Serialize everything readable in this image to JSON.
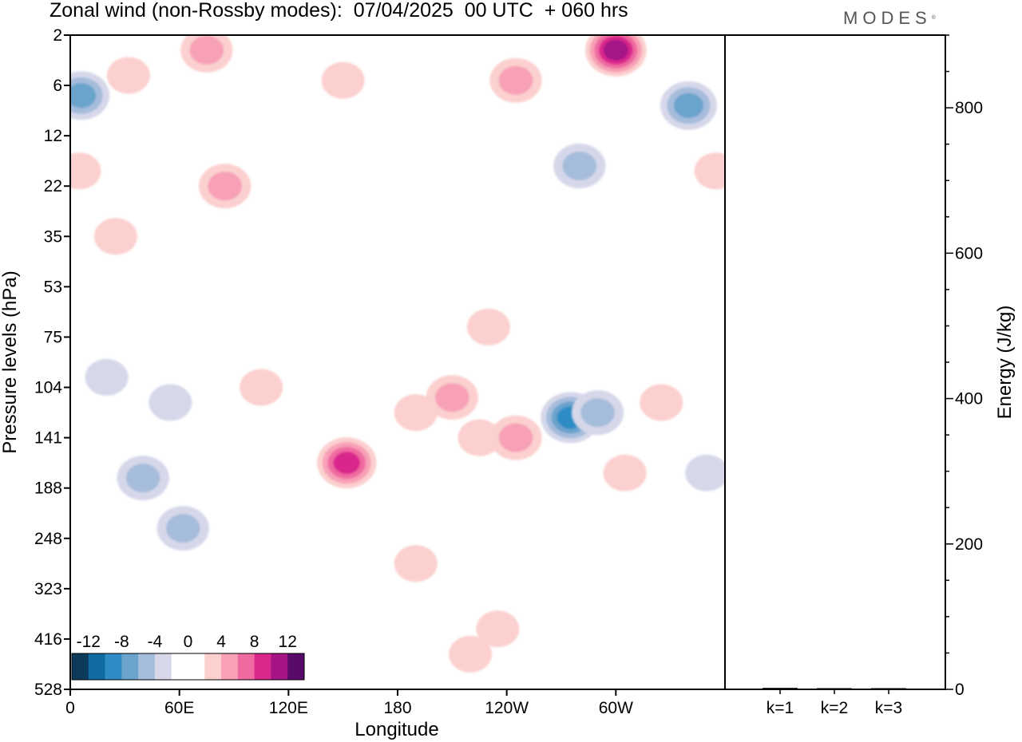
{
  "header": {
    "title": "Zonal wind (non-Rossby modes):  07/04/2025  00 UTC  + 060 hrs",
    "logo": "MODES",
    "logo_mark": "®"
  },
  "chart_data": [
    {
      "type": "heatmap",
      "title": "Zonal wind (non-Rossby modes):  07/04/2025  00 UTC  + 060 hrs",
      "xlabel": "Longitude",
      "ylabel": "Pressure levels (hPa)",
      "x_ticks": [
        "0",
        "60E",
        "120E",
        "180",
        "120W",
        "60W"
      ],
      "x_tick_values": [
        0,
        60,
        120,
        180,
        240,
        300
      ],
      "xlim": [
        0,
        360
      ],
      "y_ticks": [
        "2",
        "6",
        "12",
        "22",
        "35",
        "53",
        "75",
        "104",
        "141",
        "188",
        "248",
        "323",
        "416",
        "528"
      ],
      "y_scale": "pressure levels, equally spaced",
      "colorbar": {
        "labels": [
          "-12",
          "-8",
          "-4",
          "0",
          "4",
          "8",
          "12"
        ],
        "colors": [
          "#0b3a5a",
          "#116aa0",
          "#2f8cc4",
          "#6aa3cc",
          "#a5bcdb",
          "#d6d8ea",
          "#ffffff",
          "#ffffff",
          "#fbd0cf",
          "#f7a0b6",
          "#ef6aa0",
          "#d9288c",
          "#a51586",
          "#5a0a68"
        ]
      },
      "anomalies": [
        {
          "lon": 6,
          "level": 1.2,
          "value": -9
        },
        {
          "lon": 32,
          "level": 0.8,
          "value": 5
        },
        {
          "lon": 75,
          "level": 0.3,
          "value": 6
        },
        {
          "lon": 150,
          "level": 0.9,
          "value": 4
        },
        {
          "lon": 245,
          "level": 0.9,
          "value": 6
        },
        {
          "lon": 300,
          "level": 0.3,
          "value": 12
        },
        {
          "lon": 340,
          "level": 1.4,
          "value": -8
        },
        {
          "lon": 355,
          "level": 2.7,
          "value": 5
        },
        {
          "lon": 5,
          "level": 2.7,
          "value": 5
        },
        {
          "lon": 85,
          "level": 3.0,
          "value": 6
        },
        {
          "lon": 280,
          "level": 2.6,
          "value": -7
        },
        {
          "lon": 25,
          "level": 4.0,
          "value": 5
        },
        {
          "lon": 230,
          "level": 5.8,
          "value": 4
        },
        {
          "lon": 20,
          "level": 6.8,
          "value": -5
        },
        {
          "lon": 55,
          "level": 7.3,
          "value": -5
        },
        {
          "lon": 105,
          "level": 7.0,
          "value": 5
        },
        {
          "lon": 152,
          "level": 8.5,
          "value": 10
        },
        {
          "lon": 190,
          "level": 7.5,
          "value": 5
        },
        {
          "lon": 210,
          "level": 7.2,
          "value": 6
        },
        {
          "lon": 225,
          "level": 8.0,
          "value": 5
        },
        {
          "lon": 245,
          "level": 8.0,
          "value": 6
        },
        {
          "lon": 275,
          "level": 7.6,
          "value": -10
        },
        {
          "lon": 290,
          "level": 7.5,
          "value": -7
        },
        {
          "lon": 325,
          "level": 7.3,
          "value": 4
        },
        {
          "lon": 40,
          "level": 8.8,
          "value": -7
        },
        {
          "lon": 62,
          "level": 9.8,
          "value": -6
        },
        {
          "lon": 305,
          "level": 8.7,
          "value": 4
        },
        {
          "lon": 350,
          "level": 8.7,
          "value": -5
        },
        {
          "lon": 190,
          "level": 10.5,
          "value": 4
        },
        {
          "lon": 235,
          "level": 11.8,
          "value": 4
        },
        {
          "lon": 220,
          "level": 12.3,
          "value": 4
        }
      ]
    },
    {
      "type": "bar",
      "categories": [
        "k=1",
        "k=2",
        "k=3"
      ],
      "values": [
        2,
        1,
        1
      ],
      "ylabel": "Energy (J/kg)",
      "ylim": [
        0,
        900
      ],
      "y_ticks": [
        0,
        200,
        400,
        600,
        800
      ]
    }
  ]
}
